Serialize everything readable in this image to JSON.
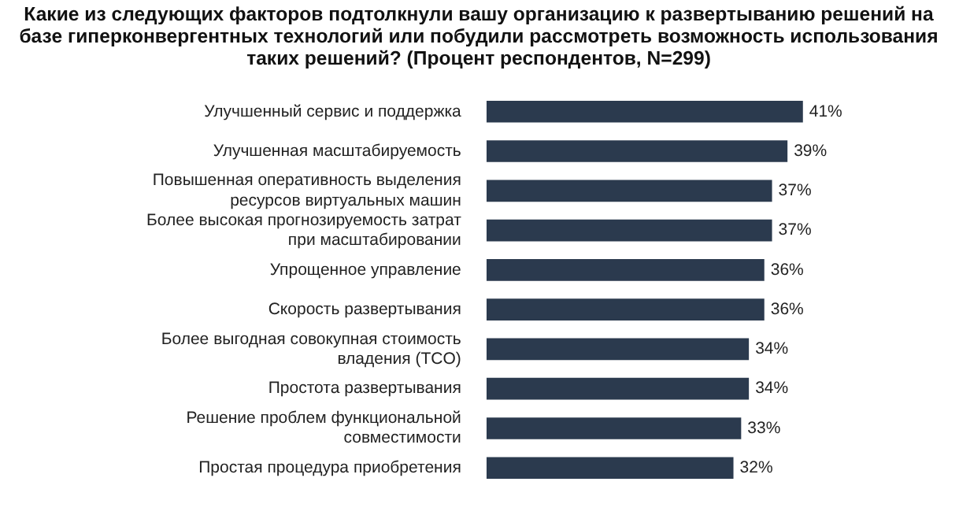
{
  "chart_data": {
    "type": "bar",
    "orientation": "horizontal",
    "title": "Какие из следующих факторов подтолкнули вашу организацию к развертыванию решений на базе гиперконвергентных технологий или побудили рассмотреть возможность использования таких решений? (Процент респондентов, N=299)",
    "categories": [
      "Улучшенный сервис и поддержка",
      "Улучшенная масштабируемость",
      "Повышенная оперативность выделения ресурсов виртуальных машин",
      "Более высокая прогнозируемость затрат при масштабировании",
      "Упрощенное управление",
      "Скорость развертывания",
      "Более выгодная совокупная стоимость владения (TCO)",
      "Простота развертывания",
      "Решение проблем функциональной совместимости",
      "Простая процедура приобретения"
    ],
    "values": [
      41,
      39,
      37,
      37,
      36,
      36,
      34,
      34,
      33,
      32
    ],
    "value_labels": [
      "41%",
      "39%",
      "37%",
      "37%",
      "36%",
      "36%",
      "34%",
      "34%",
      "33%",
      "32%"
    ],
    "color": "#2b3a4e",
    "legend": false
  }
}
